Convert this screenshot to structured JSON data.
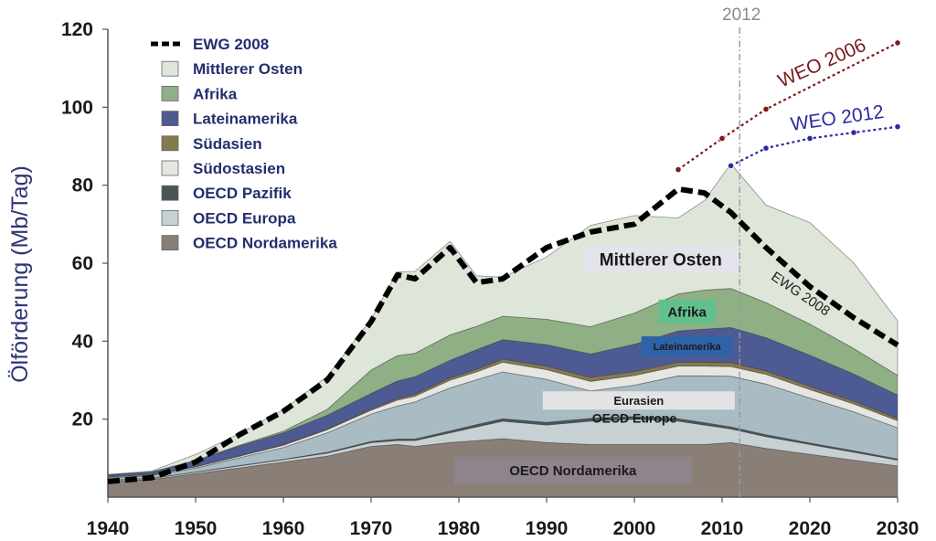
{
  "chart_data": {
    "type": "area",
    "title": "",
    "xlabel": "",
    "ylabel": "Ölförderung (Mb/Tag)",
    "xlim": [
      1940,
      2030
    ],
    "ylim": [
      0,
      120
    ],
    "x_ticks": [
      "1940",
      "1950",
      "1960",
      "1970",
      "1980",
      "1990",
      "2000",
      "2010",
      "2020",
      "2030"
    ],
    "y_ticks": [
      "20",
      "40",
      "60",
      "80",
      "100",
      "120"
    ],
    "grid": false,
    "legend_position": "top-left",
    "stacked": true,
    "x": [
      1940,
      1945,
      1950,
      1955,
      1960,
      1965,
      1970,
      1973,
      1975,
      1979,
      1982,
      1985,
      1990,
      1995,
      2000,
      2005,
      2008,
      2011,
      2015,
      2020,
      2025,
      2030
    ],
    "series": [
      {
        "name": "OECD Nordamerika",
        "color": "#8a7f77",
        "values": [
          4,
          4.5,
          6,
          7.5,
          9,
          10.5,
          13,
          13.5,
          13,
          14,
          14.5,
          15,
          14,
          13.5,
          13.5,
          13.5,
          13.5,
          14,
          12.5,
          11,
          9.5,
          8
        ]
      },
      {
        "name": "OECD Europa",
        "color": "#c7d1d4",
        "values": [
          0.3,
          0.3,
          0.4,
          0.5,
          0.6,
          0.8,
          1,
          1,
          1.5,
          2.5,
          3.5,
          4.5,
          4.5,
          6,
          6.5,
          6,
          5,
          3.5,
          3,
          2.5,
          2,
          1.5
        ]
      },
      {
        "name": "OECD Pazifik",
        "color": "#4a5558",
        "values": [
          0.05,
          0.05,
          0.05,
          0.1,
          0.1,
          0.2,
          0.3,
          0.4,
          0.4,
          0.5,
          0.6,
          0.6,
          0.7,
          0.7,
          0.7,
          0.6,
          0.6,
          0.5,
          0.5,
          0.4,
          0.4,
          0.3
        ]
      },
      {
        "name": "Eurasien",
        "color": "#a9bcc4",
        "values": [
          0.6,
          0.7,
          1,
          2,
          3,
          5,
          7,
          8.5,
          9.5,
          11,
          11.5,
          12,
          11,
          7,
          8,
          11,
          12,
          13,
          13,
          11.5,
          10,
          8
        ]
      },
      {
        "name": "Südostasien",
        "color": "#e6e6e2",
        "values": [
          0.2,
          0.2,
          0.3,
          0.4,
          0.6,
          0.8,
          1,
          1.5,
          1.5,
          2,
          2,
          2.5,
          2.5,
          2.5,
          2.5,
          2.5,
          2.5,
          2.5,
          2.5,
          2.2,
          2,
          1.8
        ]
      },
      {
        "name": "Südasien",
        "color": "#857a4e",
        "values": [
          0.1,
          0.1,
          0.1,
          0.1,
          0.2,
          0.2,
          0.3,
          0.4,
          0.5,
          0.6,
          0.7,
          0.8,
          0.9,
          1,
          1,
          1,
          1,
          1,
          0.9,
          0.8,
          0.7,
          0.6
        ]
      },
      {
        "name": "Lateinamerika",
        "color": "#4e5a93",
        "values": [
          0.5,
          0.6,
          1.5,
          2.5,
          3,
          3.5,
          4,
          4.5,
          4.5,
          4.5,
          5,
          5,
          5.5,
          6,
          7,
          8,
          8.5,
          9,
          8.5,
          8,
          7,
          6
        ]
      },
      {
        "name": "Afrika",
        "color": "#8fb085",
        "values": [
          0.05,
          0.05,
          0.1,
          0.2,
          0.4,
          1.5,
          6,
          6.5,
          6,
          6.5,
          6,
          6,
          6.5,
          7,
          8,
          9.5,
          10,
          10,
          9,
          8,
          6.5,
          5
        ]
      },
      {
        "name": "Mittlerer Osten",
        "color": "#dde6d9",
        "values": [
          0,
          0.2,
          1.5,
          3,
          5.5,
          8.5,
          13,
          21.5,
          21,
          24,
          13,
          10,
          16,
          26,
          25,
          19.5,
          23,
          32,
          25,
          26,
          22,
          14
        ]
      }
    ],
    "ewg2008": {
      "name": "EWG 2008",
      "x": [
        1940,
        1945,
        1950,
        1955,
        1960,
        1965,
        1970,
        1973,
        1975,
        1979,
        1982,
        1985,
        1990,
        1995,
        2000,
        2005,
        2008,
        2011,
        2015,
        2020,
        2025,
        2030
      ],
      "values": [
        4,
        5,
        9,
        16,
        22,
        30,
        45,
        57,
        56,
        64,
        55,
        56,
        64,
        68,
        70,
        79,
        78,
        73,
        64,
        54,
        46,
        39
      ]
    },
    "weo2006": {
      "name": "WEO 2006",
      "color": "#7a1a1a",
      "x": [
        2005,
        2010,
        2015,
        2030
      ],
      "values": [
        84,
        92,
        99.5,
        116.5
      ]
    },
    "weo2012": {
      "name": "WEO 2012",
      "color": "#2a2aa0",
      "x": [
        2011,
        2015,
        2020,
        2025,
        2030
      ],
      "values": [
        85,
        89.5,
        92,
        93.5,
        95
      ]
    },
    "reference_line": {
      "x": 2012,
      "label": "2012"
    },
    "region_labels": [
      {
        "text": "Mittlerer Osten",
        "series": "Mittlerer Osten"
      },
      {
        "text": "Afrika",
        "series": "Afrika"
      },
      {
        "text": "Lateinamerika",
        "series": "Lateinamerika"
      },
      {
        "text": "Eurasien",
        "series": "Eurasien"
      },
      {
        "text": "OECD Europe",
        "series": "OECD Europa"
      },
      {
        "text": "OECD Nordamerika",
        "series": "OECD Nordamerika"
      }
    ],
    "ewg_curve_label": "EWG 2008"
  }
}
